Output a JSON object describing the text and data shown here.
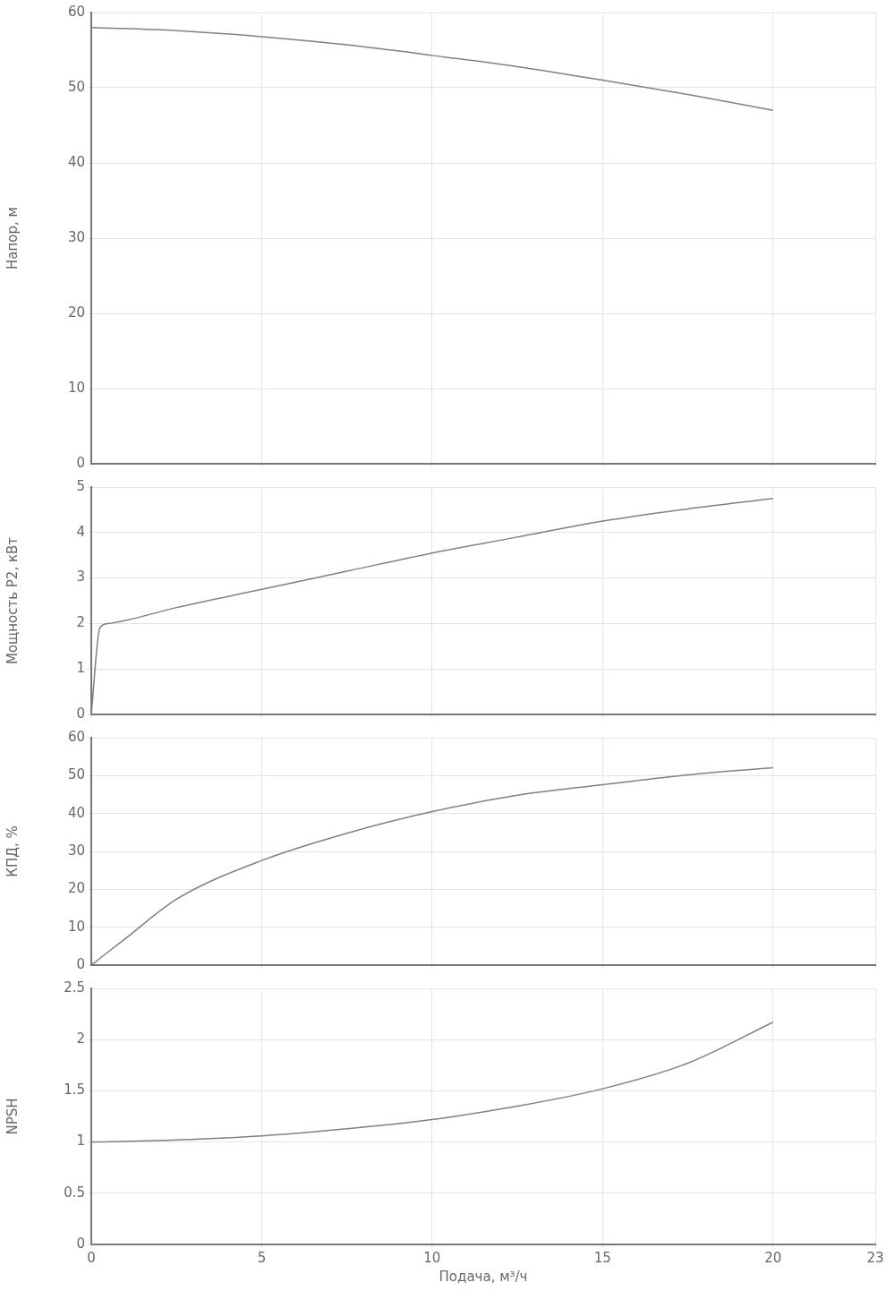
{
  "chart_data": [
    {
      "type": "line",
      "ylabel": "Напор, м",
      "xlim": [
        0,
        23
      ],
      "xticks": [
        0,
        5,
        10,
        15,
        20,
        23
      ],
      "ylim": [
        0,
        60
      ],
      "yticks": [
        0,
        10,
        20,
        30,
        40,
        50,
        60
      ],
      "grid": true,
      "tick_labels": "y",
      "series": [
        {
          "color": "#808080",
          "x": [
            0,
            2.5,
            5,
            7.5,
            10,
            12.5,
            15,
            17.5,
            20
          ],
          "values": [
            58,
            57.6,
            56.8,
            55.7,
            54.3,
            52.8,
            51,
            49.1,
            47
          ]
        }
      ]
    },
    {
      "type": "line",
      "ylabel": "Мощность P2, кВт",
      "xlim": [
        0,
        23
      ],
      "xticks": [
        0,
        5,
        10,
        15,
        20,
        23
      ],
      "ylim": [
        0,
        5
      ],
      "yticks": [
        0,
        1,
        2,
        3,
        4,
        5
      ],
      "grid": true,
      "tick_labels": "y",
      "series": [
        {
          "color": "#808080",
          "x": [
            0,
            0.25,
            0.5,
            2.5,
            5,
            7.5,
            10,
            12.5,
            15,
            17.5,
            20
          ],
          "values": [
            0,
            1.9,
            2,
            2.35,
            2.75,
            3.15,
            3.55,
            3.9,
            4.25,
            4.52,
            4.75
          ]
        }
      ]
    },
    {
      "type": "line",
      "ylabel": "КПД, %",
      "xlim": [
        0,
        23
      ],
      "xticks": [
        0,
        5,
        10,
        15,
        20,
        23
      ],
      "ylim": [
        0,
        60
      ],
      "yticks": [
        0,
        10,
        20,
        30,
        40,
        50,
        60
      ],
      "grid": true,
      "tick_labels": "y",
      "series": [
        {
          "color": "#808080",
          "x": [
            0,
            1,
            2.5,
            5,
            7.5,
            10,
            12.5,
            15,
            17.5,
            20
          ],
          "values": [
            0,
            7,
            17.4,
            27.6,
            34.8,
            40.5,
            44.8,
            47.6,
            50.2,
            52.1
          ]
        }
      ]
    },
    {
      "type": "line",
      "ylabel": "NPSH",
      "xlabel": "Подача, м³/ч",
      "xlim": [
        0,
        23
      ],
      "xticks": [
        0,
        5,
        10,
        15,
        20,
        23
      ],
      "ylim": [
        0,
        2.5
      ],
      "yticks": [
        0,
        0.5,
        1,
        1.5,
        2,
        2.5
      ],
      "grid": true,
      "series": [
        {
          "color": "#808080",
          "x": [
            0,
            2.5,
            5,
            7.5,
            10,
            12.5,
            15,
            17.5,
            20
          ],
          "values": [
            1,
            1.02,
            1.06,
            1.13,
            1.22,
            1.35,
            1.52,
            1.77,
            2.17
          ]
        }
      ]
    }
  ]
}
